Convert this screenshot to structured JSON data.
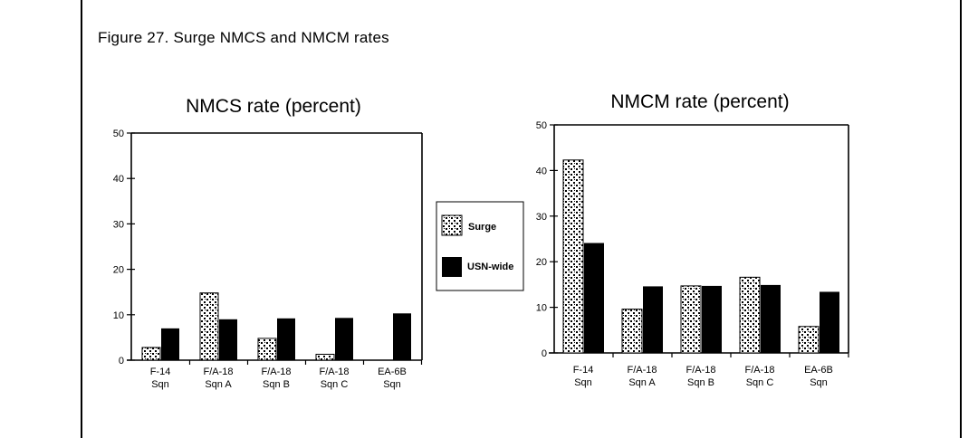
{
  "figure": {
    "caption": "Figure 27. Surge NMCS and NMCM rates"
  },
  "legend": [
    {
      "label": "Surge",
      "pattern": "dotted"
    },
    {
      "label": "USN-wide",
      "color": "#000000"
    }
  ],
  "chart_data": [
    {
      "type": "bar",
      "title": "NMCS rate (percent)",
      "categories": [
        [
          "F-14",
          "Sqn"
        ],
        [
          "F/A-18",
          "Sqn A"
        ],
        [
          "F/A-18",
          "Sqn B"
        ],
        [
          "F/A-18",
          "Sqn C"
        ],
        [
          "EA-6B",
          "Sqn"
        ]
      ],
      "series": [
        {
          "name": "Surge",
          "values": [
            2.8,
            14.8,
            4.8,
            1.3,
            0
          ]
        },
        {
          "name": "USN-wide",
          "values": [
            7.0,
            9.0,
            9.2,
            9.3,
            10.3
          ]
        }
      ],
      "ylim": [
        0,
        50
      ],
      "yticks": [
        0,
        10,
        20,
        30,
        40,
        50
      ],
      "grid": false
    },
    {
      "type": "bar",
      "title": "NMCM rate (percent)",
      "categories": [
        [
          "F-14",
          "Sqn"
        ],
        [
          "F/A-18",
          "Sqn A"
        ],
        [
          "F/A-18",
          "Sqn B"
        ],
        [
          "F/A-18",
          "Sqn C"
        ],
        [
          "EA-6B",
          "Sqn"
        ]
      ],
      "series": [
        {
          "name": "Surge",
          "values": [
            42.3,
            9.6,
            14.7,
            16.6,
            5.8
          ]
        },
        {
          "name": "USN-wide",
          "values": [
            24.1,
            14.6,
            14.7,
            14.9,
            13.4
          ]
        }
      ],
      "ylim": [
        0,
        50
      ],
      "yticks": [
        0,
        10,
        20,
        30,
        40,
        50
      ],
      "grid": false
    }
  ]
}
